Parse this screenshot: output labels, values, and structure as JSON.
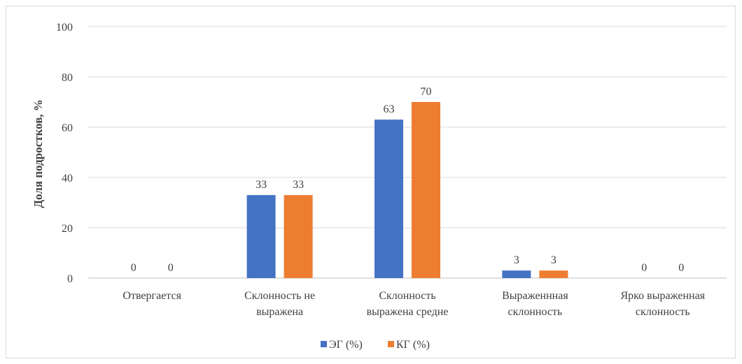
{
  "chart_data": {
    "type": "bar",
    "title": "",
    "xlabel": "",
    "ylabel": "Доля подростков, %",
    "ylim": [
      0,
      100
    ],
    "yticks": [
      0,
      20,
      40,
      60,
      80,
      100
    ],
    "grid": true,
    "legend_position": "bottom",
    "categories": [
      [
        "Отвергается"
      ],
      [
        "Склонность не",
        "выражена"
      ],
      [
        "Склонность",
        "выражена средне"
      ],
      [
        "Выраженнная",
        "склонность"
      ],
      [
        "Ярко выраженная",
        "склонность"
      ]
    ],
    "series": [
      {
        "name": "ЭГ (%)",
        "color": "#4472c4",
        "values": [
          0,
          33,
          63,
          3,
          0
        ]
      },
      {
        "name": "КГ (%)",
        "color": "#ed7d31",
        "values": [
          0,
          33,
          70,
          3,
          0
        ]
      }
    ]
  }
}
